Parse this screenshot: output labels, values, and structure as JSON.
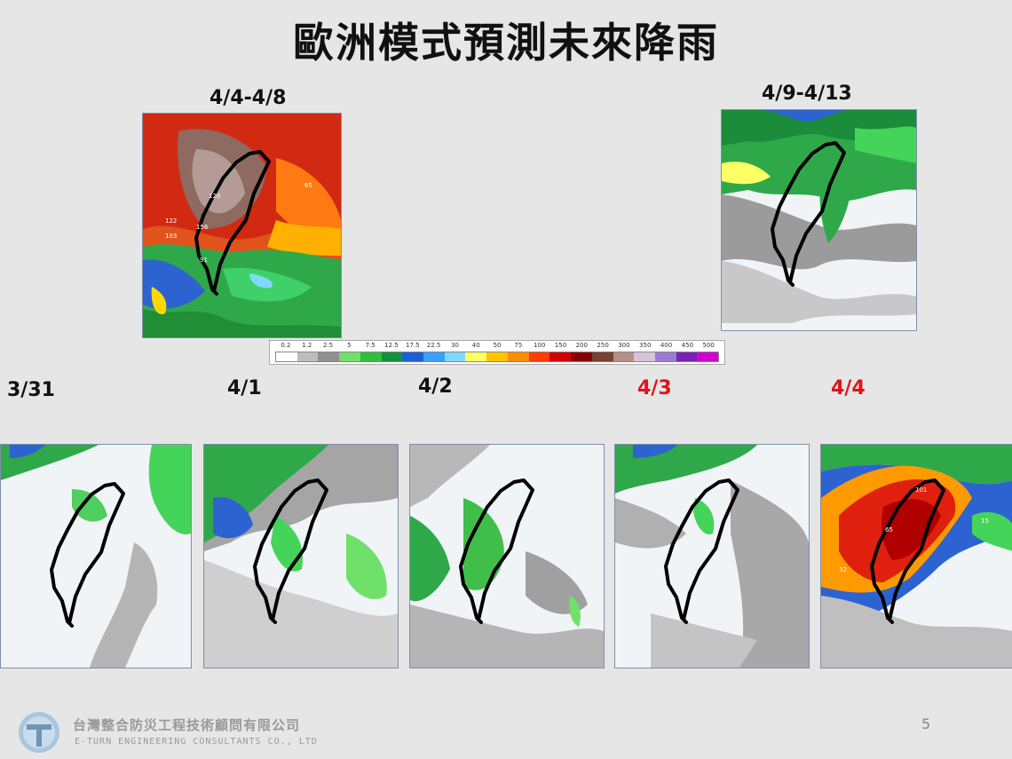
{
  "slide": {
    "title": "歐洲模式預測未來降雨",
    "page_number": "5"
  },
  "accumulated": [
    {
      "label": "4/4-4/8",
      "theme": "heavy"
    },
    {
      "label": "4/9-4/13",
      "theme": "moderate"
    }
  ],
  "daily": [
    {
      "label": "3/31",
      "color": "#111111",
      "theme": "light"
    },
    {
      "label": "4/1",
      "color": "#111111",
      "theme": "light"
    },
    {
      "label": "4/2",
      "color": "#111111",
      "theme": "light"
    },
    {
      "label": "4/3",
      "color": "#e3121b",
      "theme": "light"
    },
    {
      "label": "4/4",
      "color": "#e3121b",
      "theme": "heavy"
    }
  ],
  "map_annotations": {
    "accum_1": [
      "65",
      "122",
      "103",
      "156",
      "120",
      "91"
    ],
    "daily_5": [
      "101",
      "65",
      "32",
      "15"
    ]
  },
  "legend": {
    "ticks": [
      "0.2",
      "1.2",
      "2.5",
      "5",
      "7.5",
      "12.5",
      "17.5",
      "22.5",
      "30",
      "40",
      "50",
      "75",
      "100",
      "150",
      "200",
      "250",
      "300",
      "350",
      "400",
      "450",
      "500"
    ],
    "colors": [
      "#ffffff",
      "#bdbdbd",
      "#8f8f8f",
      "#6fe06a",
      "#2fbf3a",
      "#13913b",
      "#1f5fd6",
      "#3aa0ff",
      "#7fd8ff",
      "#ffff66",
      "#ffc300",
      "#ff8c00",
      "#ff3d00",
      "#d00000",
      "#8b0000",
      "#7a4030",
      "#b48f88",
      "#d7c3d6",
      "#9a7ad1",
      "#7a1fb8",
      "#d000d0"
    ]
  },
  "footer": {
    "company_cn": "台灣整合防災工程技術顧問有限公司",
    "company_en": "E-TURN ENGINEERING CONSULTANTS CO., LTD"
  }
}
